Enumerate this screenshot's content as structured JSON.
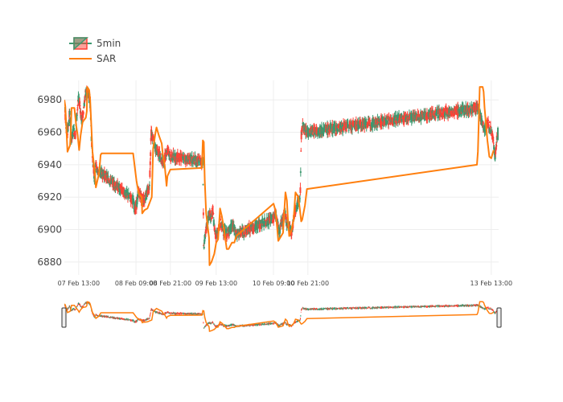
{
  "chart_data": {
    "type": "candlestick",
    "series": [
      {
        "name": "5min",
        "kind": "candlestick",
        "colors": {
          "increasing": "#3d9970",
          "decreasing": "#ff4136"
        }
      },
      {
        "name": "SAR",
        "kind": "line",
        "color": "#ff7f0e"
      }
    ],
    "legend": {
      "position": "top-left",
      "items": [
        "5min",
        "SAR"
      ]
    },
    "y_axis": {
      "range": [
        6872,
        6992
      ],
      "ticks": [
        6880,
        6900,
        6920,
        6940,
        6960,
        6980
      ],
      "grid": true
    },
    "x_axis": {
      "range": [
        "2017-02-07 08:00",
        "2017-02-13 15:35"
      ],
      "ticks": [
        {
          "label": "07 Feb 13:00",
          "value": "2017-02-07 13:00"
        },
        {
          "label": "08 Feb 09:00",
          "value": "2017-02-08 09:00"
        },
        {
          "label": "08 Feb 21:00",
          "value": "2017-02-08 21:00"
        },
        {
          "label": "09 Feb 13:00",
          "value": "2017-02-09 13:00"
        },
        {
          "label": "10 Feb 09:00",
          "value": "2017-02-10 09:00"
        },
        {
          "label": "10 Feb 21:00",
          "value": "2017-02-10 21:00"
        },
        {
          "label": "13 Feb 13:00",
          "value": "2017-02-13 13:00"
        }
      ],
      "grid": true
    },
    "price_path": [
      [
        "2017-02-07 08:00",
        6978
      ],
      [
        "2017-02-07 08:35",
        6965
      ],
      [
        "2017-02-07 09:10",
        6960
      ],
      [
        "2017-02-07 09:50",
        6972
      ],
      [
        "2017-02-07 10:30",
        6955
      ],
      [
        "2017-02-07 11:10",
        6962
      ],
      [
        "2017-02-07 11:50",
        6958
      ],
      [
        "2017-02-07 12:20",
        6970
      ],
      [
        "2017-02-07 12:50",
        6980
      ],
      [
        "2017-02-07 13:25",
        6978
      ],
      [
        "2017-02-07 14:00",
        6966
      ],
      [
        "2017-02-07 14:50",
        6976
      ],
      [
        "2017-02-07 15:30",
        6985
      ],
      [
        "2017-02-07 17:00",
        6980
      ],
      [
        "2017-02-07 17:30",
        6955
      ],
      [
        "2017-02-07 18:00",
        6942
      ],
      [
        "2017-02-07 18:30",
        6932
      ],
      [
        "2017-02-07 19:00",
        6940
      ],
      [
        "2017-02-07 19:40",
        6936
      ],
      [
        "2017-02-07 21:00",
        6935
      ],
      [
        "2017-02-08 08:00",
        6918
      ],
      [
        "2017-02-08 08:40",
        6912
      ],
      [
        "2017-02-08 09:20",
        6916
      ],
      [
        "2017-02-08 09:50",
        6924
      ],
      [
        "2017-02-08 10:40",
        6920
      ],
      [
        "2017-02-08 11:40",
        6918
      ],
      [
        "2017-02-08 12:40",
        6922
      ],
      [
        "2017-02-08 13:40",
        6925
      ],
      [
        "2017-02-08 14:20",
        6960
      ],
      [
        "2017-02-08 15:00",
        6955
      ],
      [
        "2017-02-08 15:50",
        6950
      ],
      [
        "2017-02-08 16:40",
        6948
      ],
      [
        "2017-02-08 17:40",
        6944
      ],
      [
        "2017-02-08 18:30",
        6940
      ],
      [
        "2017-02-08 19:20",
        6946
      ],
      [
        "2017-02-08 20:10",
        6950
      ],
      [
        "2017-02-08 21:00",
        6944
      ],
      [
        "2017-02-08 21:30",
        6945
      ],
      [
        "2017-02-09 08:20",
        6942
      ],
      [
        "2017-02-09 08:40",
        6890
      ],
      [
        "2017-02-09 09:10",
        6896
      ],
      [
        "2017-02-09 09:50",
        6904
      ],
      [
        "2017-02-09 10:30",
        6910
      ],
      [
        "2017-02-09 11:10",
        6908
      ],
      [
        "2017-02-09 11:50",
        6912
      ],
      [
        "2017-02-09 12:30",
        6898
      ],
      [
        "2017-02-09 13:10",
        6897
      ],
      [
        "2017-02-09 13:50",
        6900
      ],
      [
        "2017-02-09 14:30",
        6904
      ],
      [
        "2017-02-09 15:40",
        6899
      ],
      [
        "2017-02-09 16:40",
        6897
      ],
      [
        "2017-02-09 17:40",
        6900
      ],
      [
        "2017-02-09 18:40",
        6902
      ],
      [
        "2017-02-09 19:20",
        6900
      ],
      [
        "2017-02-09 20:00",
        6897
      ],
      [
        "2017-02-10 09:00",
        6907
      ],
      [
        "2017-02-10 09:40",
        6910
      ],
      [
        "2017-02-10 10:20",
        6905
      ],
      [
        "2017-02-10 11:00",
        6898
      ],
      [
        "2017-02-10 11:40",
        6904
      ],
      [
        "2017-02-10 12:20",
        6906
      ],
      [
        "2017-02-10 13:00",
        6910
      ],
      [
        "2017-02-10 13:40",
        6904
      ],
      [
        "2017-02-10 14:30",
        6902
      ],
      [
        "2017-02-10 15:20",
        6898
      ],
      [
        "2017-02-10 16:10",
        6908
      ],
      [
        "2017-02-10 17:00",
        6914
      ],
      [
        "2017-02-10 17:50",
        6918
      ],
      [
        "2017-02-10 18:20",
        6920
      ],
      [
        "2017-02-10 18:40",
        6958
      ],
      [
        "2017-02-10 19:20",
        6965
      ],
      [
        "2017-02-10 20:00",
        6960
      ],
      [
        "2017-02-13 08:20",
        6975
      ],
      [
        "2017-02-13 09:30",
        6968
      ],
      [
        "2017-02-13 10:40",
        6962
      ],
      [
        "2017-02-13 11:40",
        6966
      ],
      [
        "2017-02-13 12:50",
        6962
      ],
      [
        "2017-02-13 13:40",
        6955
      ],
      [
        "2017-02-13 14:20",
        6945
      ],
      [
        "2017-02-13 14:50",
        6954
      ],
      [
        "2017-02-13 15:20",
        6960
      ],
      [
        "2017-02-13 15:35",
        6956
      ]
    ],
    "sar": [
      [
        "2017-02-07 08:00",
        6980
      ],
      [
        "2017-02-07 08:20",
        6976
      ],
      [
        "2017-02-07 08:40",
        6964
      ],
      [
        "2017-02-07 09:05",
        6948
      ],
      [
        "2017-02-07 10:00",
        6952
      ],
      [
        "2017-02-07 10:20",
        6964
      ],
      [
        "2017-02-07 10:30",
        6975
      ],
      [
        "2017-02-07 11:30",
        6975
      ],
      [
        "2017-02-07 12:10",
        6964
      ],
      [
        "2017-02-07 12:40",
        6958
      ],
      [
        "2017-02-07 13:10",
        6949
      ],
      [
        "2017-02-07 13:40",
        6958
      ],
      [
        "2017-02-07 14:20",
        6966
      ],
      [
        "2017-02-07 14:40",
        6967
      ],
      [
        "2017-02-07 15:30",
        6969
      ],
      [
        "2017-02-07 15:50",
        6973
      ],
      [
        "2017-02-07 16:00",
        6988
      ],
      [
        "2017-02-07 16:40",
        6986
      ],
      [
        "2017-02-07 17:00",
        6980
      ],
      [
        "2017-02-07 17:50",
        6948
      ],
      [
        "2017-02-07 18:40",
        6935
      ],
      [
        "2017-02-07 19:00",
        6926
      ],
      [
        "2017-02-07 20:10",
        6935
      ],
      [
        "2017-02-07 20:40",
        6946
      ],
      [
        "2017-02-07 21:00",
        6947
      ],
      [
        "2017-02-08 08:00",
        6947
      ],
      [
        "2017-02-08 09:10",
        6930
      ],
      [
        "2017-02-08 10:00",
        6922
      ],
      [
        "2017-02-08 11:00",
        6920
      ],
      [
        "2017-02-08 11:10",
        6910
      ],
      [
        "2017-02-08 12:00",
        6912
      ],
      [
        "2017-02-08 13:00",
        6913
      ],
      [
        "2017-02-08 14:30",
        6920
      ],
      [
        "2017-02-08 15:00",
        6950
      ],
      [
        "2017-02-08 15:50",
        6960
      ],
      [
        "2017-02-08 16:10",
        6963
      ],
      [
        "2017-02-08 17:00",
        6958
      ],
      [
        "2017-02-08 18:00",
        6953
      ],
      [
        "2017-02-08 18:20",
        6947
      ],
      [
        "2017-02-08 19:00",
        6940
      ],
      [
        "2017-02-08 19:40",
        6927
      ],
      [
        "2017-02-08 20:00",
        6933
      ],
      [
        "2017-02-08 21:00",
        6937
      ],
      [
        "2017-02-09 08:00",
        6938
      ],
      [
        "2017-02-09 08:20",
        6955
      ],
      [
        "2017-02-09 08:40",
        6954
      ],
      [
        "2017-02-09 09:00",
        6930
      ],
      [
        "2017-02-09 09:30",
        6910
      ],
      [
        "2017-02-09 10:30",
        6895
      ],
      [
        "2017-02-09 10:40",
        6878
      ],
      [
        "2017-02-09 11:20",
        6880
      ],
      [
        "2017-02-09 12:20",
        6885
      ],
      [
        "2017-02-09 13:00",
        6892
      ],
      [
        "2017-02-09 13:40",
        6894
      ],
      [
        "2017-02-09 14:20",
        6913
      ],
      [
        "2017-02-09 15:00",
        6908
      ],
      [
        "2017-02-09 15:40",
        6901
      ],
      [
        "2017-02-09 16:40",
        6888
      ],
      [
        "2017-02-09 17:20",
        6888
      ],
      [
        "2017-02-09 18:30",
        6892
      ],
      [
        "2017-02-09 19:20",
        6892
      ],
      [
        "2017-02-09 20:00",
        6896
      ],
      [
        "2017-02-10 09:00",
        6916
      ],
      [
        "2017-02-10 09:40",
        6912
      ],
      [
        "2017-02-10 10:20",
        6900
      ],
      [
        "2017-02-10 10:40",
        6893
      ],
      [
        "2017-02-10 11:20",
        6895
      ],
      [
        "2017-02-10 12:20",
        6898
      ],
      [
        "2017-02-10 13:10",
        6923
      ],
      [
        "2017-02-10 13:40",
        6918
      ],
      [
        "2017-02-10 14:00",
        6907
      ],
      [
        "2017-02-10 14:30",
        6896
      ],
      [
        "2017-02-10 15:20",
        6900
      ],
      [
        "2017-02-10 16:00",
        6906
      ],
      [
        "2017-02-10 16:40",
        6923
      ],
      [
        "2017-02-10 17:40",
        6920
      ],
      [
        "2017-02-10 18:10",
        6913
      ],
      [
        "2017-02-10 18:40",
        6905
      ],
      [
        "2017-02-10 19:00",
        6906
      ],
      [
        "2017-02-10 20:00",
        6915
      ],
      [
        "2017-02-10 20:40",
        6925
      ],
      [
        "2017-02-13 08:00",
        6940
      ],
      [
        "2017-02-13 08:20",
        6948
      ],
      [
        "2017-02-13 09:00",
        6988
      ],
      [
        "2017-02-13 10:00",
        6988
      ],
      [
        "2017-02-13 10:20",
        6985
      ],
      [
        "2017-02-13 10:40",
        6975
      ],
      [
        "2017-02-13 11:40",
        6955
      ],
      [
        "2017-02-13 12:20",
        6945
      ],
      [
        "2017-02-13 13:00",
        6944
      ],
      [
        "2017-02-13 13:50",
        6949
      ]
    ]
  },
  "rangeslider": {
    "visible": true
  }
}
